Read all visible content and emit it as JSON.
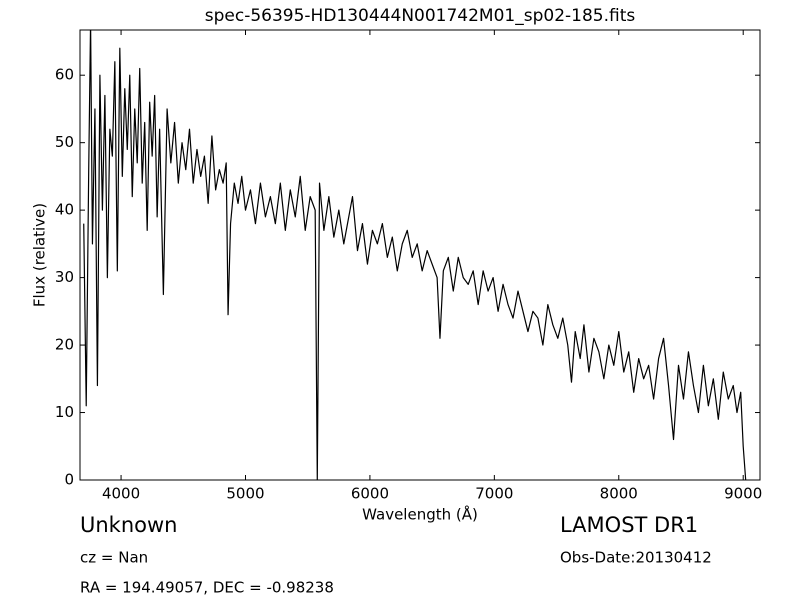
{
  "chart_data": {
    "type": "line",
    "title": "spec-56395-HD130444N001742M01_sp02-185.fits",
    "x_label": "Wavelength (Å)",
    "y_label": "Flux (relative)",
    "annotations": [
      "Unknown",
      "cz = Nan",
      "RA = 194.49057, DEC = -0.98238",
      "LAMOST DR1",
      "Obs-Date:20130412"
    ],
    "color": "#000000",
    "xlim": [
      3670,
      9135
    ],
    "ylim": [
      0,
      66.7
    ],
    "xticks": [
      4000,
      5000,
      6000,
      7000,
      8000,
      9000
    ],
    "yticks": [
      0,
      10,
      20,
      30,
      40,
      50,
      60
    ],
    "x": [
      3700,
      3720,
      3740,
      3755,
      3770,
      3790,
      3810,
      3830,
      3850,
      3870,
      3890,
      3910,
      3930,
      3950,
      3970,
      3990,
      4010,
      4030,
      4050,
      4070,
      4090,
      4110,
      4130,
      4150,
      4170,
      4190,
      4210,
      4230,
      4250,
      4270,
      4290,
      4310,
      4340,
      4370,
      4400,
      4430,
      4460,
      4490,
      4520,
      4550,
      4580,
      4610,
      4640,
      4670,
      4700,
      4730,
      4760,
      4790,
      4820,
      4845,
      4860,
      4880,
      4910,
      4940,
      4970,
      5000,
      5040,
      5080,
      5120,
      5160,
      5200,
      5240,
      5280,
      5320,
      5360,
      5400,
      5440,
      5480,
      5520,
      5560,
      5577,
      5595,
      5630,
      5670,
      5710,
      5750,
      5790,
      5830,
      5860,
      5900,
      5940,
      5980,
      6020,
      6060,
      6100,
      6140,
      6180,
      6220,
      6260,
      6300,
      6340,
      6380,
      6420,
      6460,
      6500,
      6540,
      6563,
      6590,
      6630,
      6670,
      6710,
      6750,
      6790,
      6830,
      6870,
      6910,
      6950,
      6990,
      7030,
      7070,
      7110,
      7150,
      7190,
      7230,
      7270,
      7310,
      7350,
      7390,
      7430,
      7470,
      7510,
      7550,
      7590,
      7620,
      7650,
      7690,
      7720,
      7760,
      7800,
      7840,
      7880,
      7920,
      7960,
      8000,
      8040,
      8080,
      8120,
      8160,
      8200,
      8240,
      8280,
      8320,
      8360,
      8400,
      8440,
      8480,
      8520,
      8560,
      8600,
      8640,
      8680,
      8720,
      8760,
      8800,
      8840,
      8880,
      8920,
      8950,
      8980,
      9000,
      9020
    ],
    "values": [
      38,
      11,
      46,
      68,
      35,
      55,
      14,
      60,
      40,
      57,
      30,
      52,
      48,
      62,
      31,
      64,
      45,
      58,
      49,
      60,
      42,
      55,
      47,
      61,
      44,
      53,
      37,
      56,
      48,
      57,
      39,
      52,
      27.5,
      55,
      47,
      53,
      44,
      50,
      46,
      52,
      44,
      49,
      45,
      48,
      41,
      51,
      43,
      46,
      44,
      47,
      24.5,
      38,
      44,
      41,
      45,
      40,
      43,
      38,
      44,
      39,
      42,
      38,
      44,
      37,
      43,
      39,
      45,
      37,
      42,
      40,
      0,
      44,
      37,
      42,
      36,
      40,
      35,
      39,
      42,
      34,
      38,
      32,
      37,
      35,
      38,
      33,
      36,
      31,
      35,
      37,
      33,
      35,
      31,
      34,
      32,
      30,
      21,
      31,
      33,
      28,
      33,
      30,
      29,
      31,
      26,
      31,
      28,
      30,
      25,
      29,
      26,
      24,
      28,
      25,
      22,
      25,
      24,
      20,
      26,
      23,
      21,
      24,
      20,
      14.5,
      22,
      18,
      23,
      16,
      21,
      19,
      15,
      20,
      17,
      22,
      16,
      19,
      13,
      18,
      15,
      17,
      12,
      18,
      21,
      14,
      6,
      17,
      12,
      19,
      14,
      10,
      17,
      11,
      15,
      9,
      16,
      12,
      14,
      10,
      13,
      5,
      0
    ]
  }
}
